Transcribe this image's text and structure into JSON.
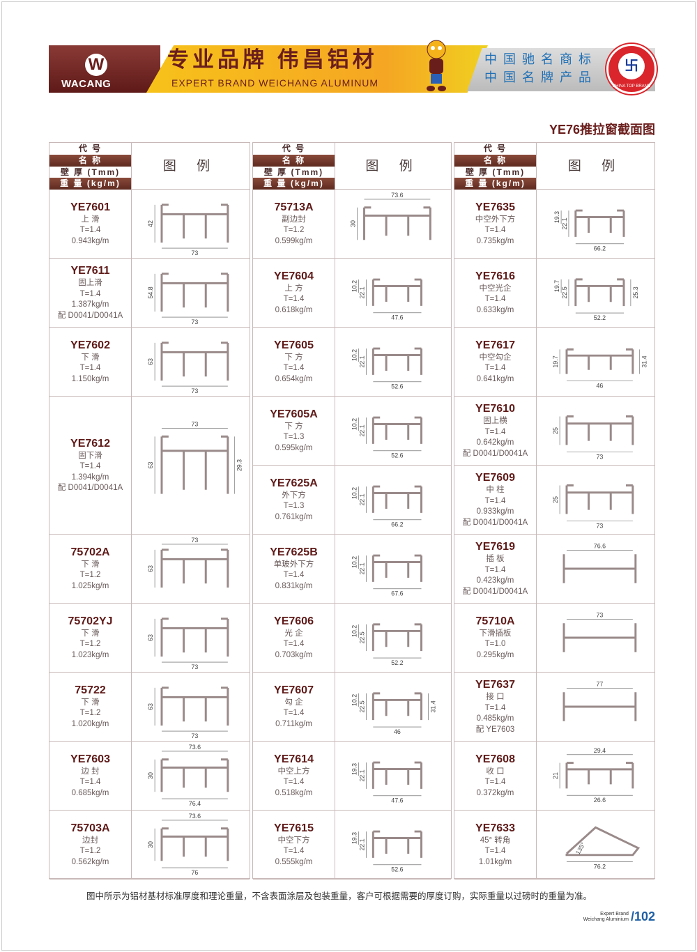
{
  "header": {
    "brand": "WACANG",
    "slogan": "专业品牌  伟昌铝材",
    "slogan_en": "EXPERT BRAND WEICHANG ALUMINUM",
    "honor1": "中国驰名商标",
    "honor2": "中国名牌产品",
    "seal_text": "CHINA TOP BRAND"
  },
  "page_title": "YE76推拉窗截面图",
  "table_header": {
    "code": "代 号",
    "name": "名 称",
    "thickness": "壁 厚 (Tmm)",
    "weight": "重 量 (kg/m)",
    "figure": "图 例"
  },
  "colors": {
    "brand": "#5e1a18",
    "accent": "#f5a623",
    "page_number": "#1e5fa5"
  },
  "columns": [
    [
      {
        "code": "YE7601",
        "name": "上 滑",
        "t": "T=1.4",
        "w": "0.943kg/m",
        "dims": {
          "bottom": "73",
          "left": [
            "42"
          ]
        }
      },
      {
        "code": "YE7611",
        "name": "固上滑",
        "t": "T=1.4",
        "w": "1.387kg/m",
        "note": "配 D0041/D0041A",
        "dims": {
          "bottom": "73",
          "left": [
            "54.8"
          ]
        }
      },
      {
        "code": "YE7602",
        "name": "下 滑",
        "t": "T=1.4",
        "w": "1.150kg/m",
        "dims": {
          "bottom": "73",
          "left": [
            "63"
          ]
        }
      },
      {
        "code": "YE7612",
        "name": "固下滑",
        "t": "T=1.4",
        "w": "1.394kg/m",
        "note": "配 D0041/D0041A",
        "span": 2,
        "dims": {
          "top": "73",
          "left": [
            "63"
          ],
          "right": "29.3"
        }
      },
      {
        "code": "75702A",
        "name": "下 滑",
        "t": "T=1.2",
        "w": "1.025kg/m",
        "dims": {
          "top": "73",
          "left": [
            "63"
          ]
        }
      },
      {
        "code": "75702YJ",
        "name": "下 滑",
        "t": "T=1.2",
        "w": "1.023kg/m",
        "dims": {
          "bottom": "73",
          "left": [
            "63"
          ]
        }
      },
      {
        "code": "75722",
        "name": "下 滑",
        "t": "T=1.2",
        "w": "1.020kg/m",
        "dims": {
          "bottom": "73",
          "left": [
            "63"
          ]
        }
      },
      {
        "code": "YE7603",
        "name": "边 封",
        "t": "T=1.4",
        "w": "0.685kg/m",
        "dims": {
          "top": "73.6",
          "bottom": "76.4",
          "left": [
            "30"
          ]
        }
      },
      {
        "code": "75703A",
        "name": "边封",
        "t": "T=1.2",
        "w": "0.562kg/m",
        "dims": {
          "top": "73.6",
          "bottom": "76",
          "left": [
            "30"
          ]
        }
      }
    ],
    [
      {
        "code": "75713A",
        "name": "副边封",
        "t": "T=1.2",
        "w": "0.599kg/m",
        "dims": {
          "top": "73.6",
          "left": [
            "30"
          ]
        }
      },
      {
        "code": "YE7604",
        "name": "上 方",
        "t": "T=1.4",
        "w": "0.618kg/m",
        "dims": {
          "bottom": "47.6",
          "left": [
            "22.1",
            "10.2"
          ]
        }
      },
      {
        "code": "YE7605",
        "name": "下 方",
        "t": "T=1.4",
        "w": "0.654kg/m",
        "dims": {
          "bottom": "52.6",
          "left": [
            "22.1",
            "10.2"
          ]
        }
      },
      {
        "code": "YE7605A",
        "name": "下 方",
        "t": "T=1.3",
        "w": "0.595kg/m",
        "dims": {
          "bottom": "52.6",
          "left": [
            "22.1",
            "10.2"
          ]
        }
      },
      {
        "code": "YE7625A",
        "name": "外下方",
        "t": "T=1.3",
        "w": "0.761kg/m",
        "dims": {
          "bottom": "66.2",
          "left": [
            "22.1",
            "10.2"
          ]
        }
      },
      {
        "code": "YE7625B",
        "name": "单玻外下方",
        "t": "T=1.4",
        "w": "0.831kg/m",
        "dims": {
          "bottom": "67.6",
          "left": [
            "22.1",
            "10.2"
          ]
        }
      },
      {
        "code": "YE7606",
        "name": "光 企",
        "t": "T=1.4",
        "w": "0.703kg/m",
        "dims": {
          "bottom": "52.2",
          "left": [
            "22.5",
            "10.2"
          ]
        }
      },
      {
        "code": "YE7607",
        "name": "勾 企",
        "t": "T=1.4",
        "w": "0.711kg/m",
        "dims": {
          "bottom": "46",
          "left": [
            "22.5",
            "10.2"
          ],
          "right": "31.4"
        }
      },
      {
        "code": "YE7614",
        "name": "中空上方",
        "t": "T=1.4",
        "w": "0.518kg/m",
        "dims": {
          "bottom": "47.6",
          "left": [
            "22.1",
            "19.3"
          ]
        }
      },
      {
        "code": "YE7615",
        "name": "中空下方",
        "t": "T=1.4",
        "w": "0.555kg/m",
        "dims": {
          "bottom": "52.6",
          "left": [
            "22.1",
            "19.3"
          ]
        }
      }
    ],
    [
      {
        "code": "YE7635",
        "name": "中空外下方",
        "t": "T=1.4",
        "w": "0.735kg/m",
        "dims": {
          "bottom": "66.2",
          "left": [
            "22.1",
            "19.3"
          ]
        }
      },
      {
        "code": "YE7616",
        "name": "中空光企",
        "t": "T=1.4",
        "w": "0.633kg/m",
        "dims": {
          "bottom": "52.2",
          "left": [
            "22.5",
            "19.7"
          ],
          "right": "25.3"
        }
      },
      {
        "code": "YE7617",
        "name": "中空勾企",
        "t": "T=1.4",
        "w": "0.641kg/m",
        "dims": {
          "bottom": "46",
          "left": [
            "19.7"
          ],
          "right": "31.4"
        }
      },
      {
        "code": "YE7610",
        "name": "固上横",
        "t": "T=1.4",
        "w": "0.642kg/m",
        "note": "配 D0041/D0041A",
        "dims": {
          "bottom": "73",
          "left": [
            "25"
          ]
        }
      },
      {
        "code": "YE7609",
        "name": "中 柱",
        "t": "T=1.4",
        "w": "0.933kg/m",
        "note": "配 D0041/D0041A",
        "dims": {
          "bottom": "73",
          "left": [
            "25"
          ]
        }
      },
      {
        "code": "YE7619",
        "name": "插 板",
        "t": "T=1.4",
        "w": "0.423kg/m",
        "note": "配 D0041/D0041A",
        "dims": {
          "top": "76.6"
        }
      },
      {
        "code": "75710A",
        "name": "下滑插板",
        "t": "T=1.0",
        "w": "0.295kg/m",
        "dims": {
          "top": "73"
        }
      },
      {
        "code": "YE7637",
        "name": "接 口",
        "t": "T=1.4",
        "w": "0.485kg/m",
        "note": "配 YE7603",
        "dims": {
          "top": "77"
        }
      },
      {
        "code": "YE7608",
        "name": "收 口",
        "t": "T=1.4",
        "w": "0.372kg/m",
        "dims": {
          "top": "29.4",
          "bottom": "26.6",
          "left": [
            "21"
          ]
        }
      },
      {
        "code": "YE7633",
        "name": "45°  转角",
        "t": "T=1.4",
        "w": "1.01kg/m",
        "dims": {
          "angle": "135°",
          "bottom": "76.2"
        }
      }
    ]
  ],
  "footer": {
    "note": "图中所示为铝材基材标准厚度和理论重量，不含表面涂层及包装重量，客户可根据需要的厚度订购，实际重量以过磅时的重量为准。",
    "tag1": "Expert Brand",
    "tag2": "Weichang Aluminium",
    "page": "/102"
  }
}
